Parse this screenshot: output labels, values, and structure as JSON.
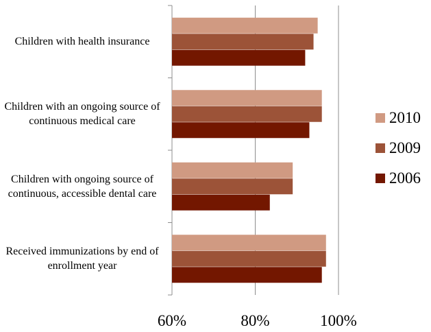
{
  "chart_data": {
    "type": "bar",
    "orientation": "horizontal",
    "categories": [
      "Children with health insurance",
      "Children with an ongoing source of continuous medical care",
      "Children with ongoing source of continuous, accessible dental care",
      "Received immunizations by end of enrollment year"
    ],
    "series": [
      {
        "name": "2010",
        "color": "#d09a82",
        "values": [
          95,
          96,
          89,
          97
        ]
      },
      {
        "name": "2009",
        "color": "#9c5338",
        "values": [
          94,
          96,
          89,
          97
        ]
      },
      {
        "name": "2006",
        "color": "#731700",
        "values": [
          92,
          93,
          83.5,
          96
        ]
      }
    ],
    "xlim": [
      60,
      100
    ],
    "xticks": [
      60,
      80,
      100
    ],
    "xtick_labels": [
      "60%",
      "80%",
      "100%"
    ],
    "grid": true,
    "legend": "right",
    "title": "",
    "xlabel": "",
    "ylabel": ""
  }
}
